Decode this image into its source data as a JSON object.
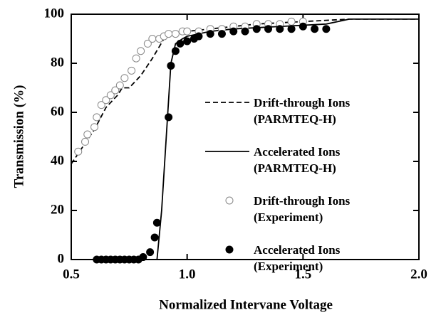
{
  "chart_data": {
    "type": "line",
    "xlabel": "Normalized Intervane Voltage",
    "ylabel": "Transmission (%)",
    "xlim": [
      0.5,
      2.0
    ],
    "xticks": [
      0.5,
      {
        "value": 1,
        "label": "1.0"
      },
      1.5,
      {
        "value": 2,
        "label": "2.0"
      }
    ],
    "ylim": [
      0,
      100
    ],
    "yticks": [
      0,
      20,
      40,
      60,
      80,
      100
    ],
    "series": [
      {
        "name": "Drift-through Ions\n(PARMTEQ-H)",
        "color": "#000",
        "kind": "line",
        "dash": true,
        "x": [
          0.5,
          0.55,
          0.6,
          0.65,
          0.7,
          0.72,
          0.75,
          0.8,
          0.85,
          0.9,
          0.95,
          1.0,
          1.1,
          1.3,
          1.5,
          1.7,
          2.0
        ],
        "values": [
          39,
          46,
          53,
          62,
          67,
          70,
          70,
          75,
          82,
          90,
          92,
          93,
          94,
          96,
          97,
          98,
          98
        ]
      },
      {
        "name": "Accelerated Ions\n(PARMTEQ-H)",
        "color": "#000",
        "kind": "line",
        "dash": false,
        "x": [
          0.87,
          0.89,
          0.91,
          0.92,
          0.93,
          0.95,
          0.98,
          1.0,
          1.1,
          1.2,
          1.4,
          1.6,
          1.7,
          2.0
        ],
        "values": [
          0,
          20,
          50,
          65,
          80,
          88,
          90,
          91,
          93,
          94,
          95,
          96,
          98,
          98
        ]
      },
      {
        "name": "Drift-through Ions\n(Experiment)",
        "color": "#000",
        "kind": "scatter",
        "filled": false,
        "x": [
          0.53,
          0.56,
          0.57,
          0.6,
          0.61,
          0.63,
          0.65,
          0.67,
          0.69,
          0.71,
          0.73,
          0.76,
          0.78,
          0.8,
          0.83,
          0.85,
          0.88,
          0.9,
          0.92,
          0.95,
          0.98,
          1.0,
          1.05,
          1.1,
          1.15,
          1.2,
          1.25,
          1.3,
          1.35,
          1.4,
          1.45,
          1.5
        ],
        "values": [
          44,
          48,
          51,
          54,
          58,
          63,
          65,
          67,
          69,
          71,
          74,
          77,
          82,
          85,
          88,
          90,
          90,
          91,
          92,
          92,
          93,
          93,
          93,
          94,
          94,
          95,
          95,
          96,
          96,
          96,
          97,
          97
        ]
      },
      {
        "name": "Accelerated Ions\n(Experiment)",
        "color": "#000",
        "kind": "scatter",
        "filled": true,
        "x": [
          0.61,
          0.63,
          0.65,
          0.67,
          0.69,
          0.71,
          0.73,
          0.75,
          0.77,
          0.79,
          0.81,
          0.84,
          0.86,
          0.87,
          0.92,
          0.93,
          0.95,
          0.97,
          1.0,
          1.03,
          1.05,
          1.1,
          1.15,
          1.2,
          1.25,
          1.3,
          1.35,
          1.4,
          1.45,
          1.5,
          1.55,
          1.6
        ],
        "values": [
          0,
          0,
          0,
          0,
          0,
          0,
          0,
          0,
          0,
          0,
          1,
          3,
          9,
          15,
          58,
          79,
          85,
          88,
          89,
          90,
          91,
          92,
          92,
          93,
          93,
          94,
          94,
          94,
          94,
          95,
          94,
          94
        ]
      }
    ]
  }
}
